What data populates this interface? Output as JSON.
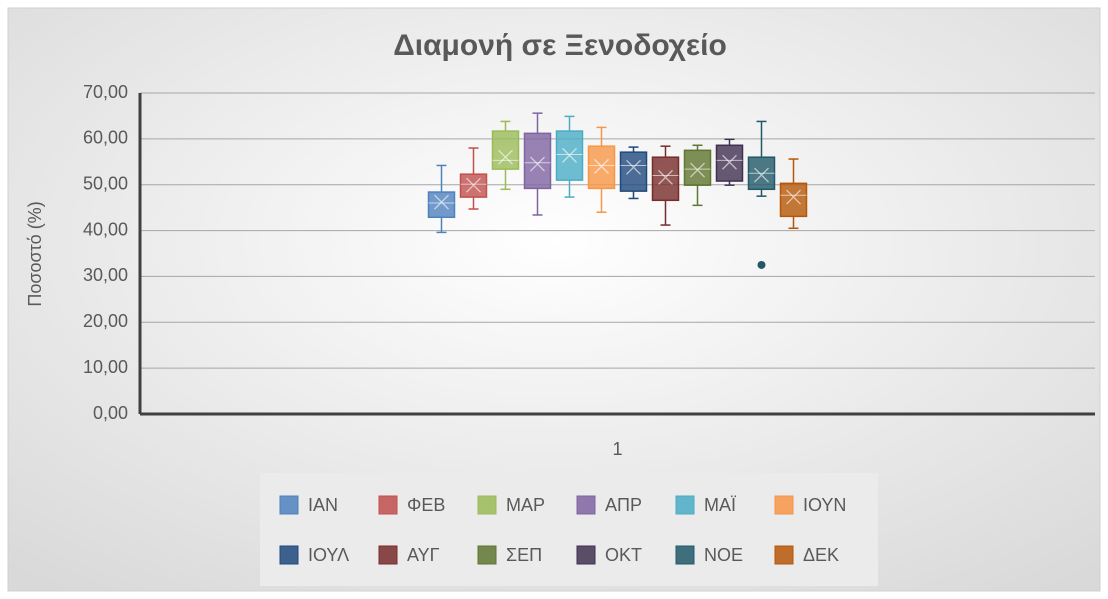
{
  "chart_data": {
    "type": "box",
    "title": "Διαμονή σε Ξενοδοχείο",
    "y_label": "Ποσοστό (%)",
    "categories": [
      "1"
    ],
    "ylim": [
      0,
      70
    ],
    "yticks": [
      {
        "value": 0,
        "label": "0,00"
      },
      {
        "value": 10,
        "label": "10,00"
      },
      {
        "value": 20,
        "label": "20,00"
      },
      {
        "value": 30,
        "label": "30,00"
      },
      {
        "value": 40,
        "label": "40,00"
      },
      {
        "value": 50,
        "label": "50,00"
      },
      {
        "value": 60,
        "label": "60,00"
      },
      {
        "value": 70,
        "label": "70,00"
      }
    ],
    "grid": true,
    "legend": "bottom",
    "series": [
      {
        "name": "ΙΑΝ",
        "color": "#4f81bd",
        "min": 39.6,
        "q1": 42.9,
        "median": 46.0,
        "q3": 48.4,
        "max": 54.2,
        "mean": 46.2,
        "outliers": []
      },
      {
        "name": "ΦΕΒ",
        "color": "#c0504d",
        "min": 44.7,
        "q1": 47.3,
        "median": 50.1,
        "q3": 52.3,
        "max": 58.0,
        "mean": 49.9,
        "outliers": []
      },
      {
        "name": "ΜΑΡ",
        "color": "#9bbb59",
        "min": 49.0,
        "q1": 53.4,
        "median": 55.3,
        "q3": 61.7,
        "max": 63.8,
        "mean": 56.0,
        "outliers": []
      },
      {
        "name": "ΑΠΡ",
        "color": "#8064a2",
        "min": 43.4,
        "q1": 49.2,
        "median": 54.8,
        "q3": 61.2,
        "max": 65.6,
        "mean": 54.5,
        "outliers": []
      },
      {
        "name": "ΜΑΪ",
        "color": "#4bacc6",
        "min": 47.3,
        "q1": 51.0,
        "median": 56.6,
        "q3": 61.7,
        "max": 64.9,
        "mean": 56.4,
        "outliers": []
      },
      {
        "name": "ΙΟΥΝ",
        "color": "#f79646",
        "min": 44.0,
        "q1": 49.2,
        "median": 54.2,
        "q3": 58.4,
        "max": 62.5,
        "mean": 54.0,
        "outliers": []
      },
      {
        "name": "ΙΟΥΛ",
        "color": "#1f497d",
        "min": 47.0,
        "q1": 48.6,
        "median": 54.2,
        "q3": 57.1,
        "max": 58.2,
        "mean": 53.8,
        "outliers": []
      },
      {
        "name": "ΑΥΓ",
        "color": "#772c2a",
        "min": 41.2,
        "q1": 46.6,
        "median": 52.0,
        "q3": 56.0,
        "max": 58.4,
        "mean": 51.6,
        "outliers": []
      },
      {
        "name": "ΣΕΠ",
        "color": "#5f7530",
        "min": 45.5,
        "q1": 49.9,
        "median": 53.4,
        "q3": 57.5,
        "max": 58.6,
        "mean": 53.2,
        "outliers": []
      },
      {
        "name": "ΟΚΤ",
        "color": "#403151",
        "min": 49.9,
        "q1": 50.8,
        "median": 55.3,
        "q3": 58.6,
        "max": 59.9,
        "mean": 54.9,
        "outliers": []
      },
      {
        "name": "ΝΟΕ",
        "color": "#215968",
        "min": 47.5,
        "q1": 49.0,
        "median": 52.5,
        "q3": 56.0,
        "max": 63.8,
        "mean": 52.1,
        "outliers": [
          32.5
        ]
      },
      {
        "name": "ΔΕΚ",
        "color": "#b65708",
        "min": 40.5,
        "q1": 43.1,
        "median": 47.7,
        "q3": 50.3,
        "max": 55.6,
        "mean": 47.3,
        "outliers": []
      }
    ]
  }
}
